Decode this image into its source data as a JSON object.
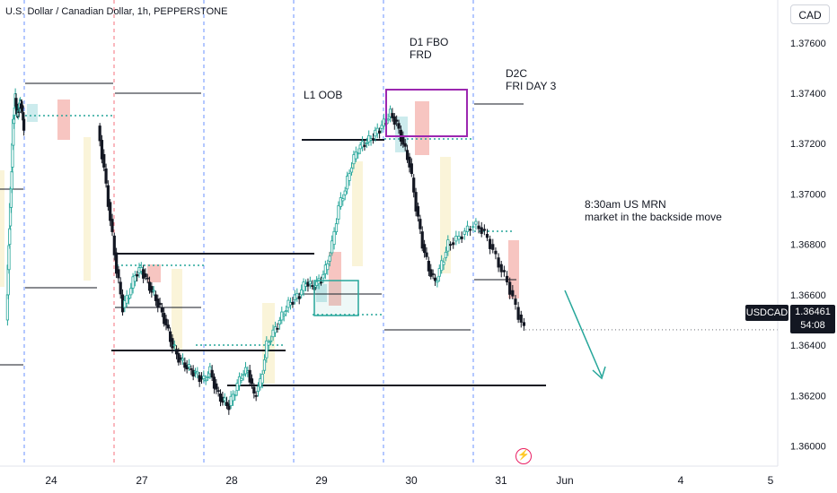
{
  "header": {
    "symbol_title": "U.S. Dollar / Canadian Dollar, 1h, PEPPERSTONE",
    "currency_button": "CAD"
  },
  "price_scale": {
    "ticks": [
      "1.37600",
      "1.37400",
      "1.37200",
      "1.37000",
      "1.36800",
      "1.36600",
      "1.36400",
      "1.36200",
      "1.36000"
    ]
  },
  "time_scale": {
    "ticks": [
      "24",
      "27",
      "28",
      "29",
      "30",
      "31",
      "Jun",
      "4",
      "5"
    ]
  },
  "last_price": {
    "symbol": "USDCAD",
    "price": "1.36461",
    "countdown": "54:08"
  },
  "annotations": {
    "l1": "L1 OOB",
    "d1_line1": "D1 FBO",
    "d1_line2": "FRD",
    "d2_line1": "D2C",
    "d2_line2": "FRI DAY 3",
    "mrn_line1": "8:30am US MRN",
    "mrn_line2": "market in the backside move"
  },
  "colors": {
    "up": "#26a69a",
    "down": "#131722",
    "accent_teal": "#26a69a",
    "box_purple": "#9c27b0",
    "session_line": "#2962ff",
    "boundary_red": "#f23645",
    "last_price_bg": "#131722"
  },
  "icons": {
    "bolt": "lightning-icon",
    "arrow": "down-arrow-drawing"
  },
  "chart_data": {
    "type": "candlestick",
    "title": "U.S. Dollar / Canadian Dollar, 1h, PEPPERSTONE",
    "ylim": [
      1.3592,
      1.3777
    ],
    "x_ticks": [
      "24",
      "27",
      "28",
      "29",
      "30",
      "31",
      "Jun",
      "4",
      "5"
    ],
    "close_path_days": [
      {
        "day": "24",
        "closes": [
          1.368,
          1.3702,
          1.3728,
          1.3738,
          1.3731,
          1.3736,
          1.3735,
          1.3727
        ]
      },
      {
        "day": "27",
        "closes": [
          1.371,
          1.369,
          1.367,
          1.3655,
          1.366,
          1.3668,
          1.367,
          1.3665,
          1.366,
          1.3655,
          1.3648,
          1.364,
          1.3635
        ]
      },
      {
        "day": "28",
        "closes": [
          1.3632,
          1.363,
          1.3628,
          1.3626,
          1.363,
          1.3622,
          1.3618,
          1.3616,
          1.3622,
          1.3628,
          1.363,
          1.362,
          1.3625,
          1.364
        ]
      },
      {
        "day": "29",
        "closes": [
          1.3645,
          1.365,
          1.3655,
          1.3658,
          1.366,
          1.3665,
          1.3663,
          1.3665,
          1.367,
          1.368,
          1.3695,
          1.3702,
          1.3712,
          1.3718
        ]
      },
      {
        "day": "30",
        "closes": [
          1.372,
          1.3722,
          1.3725,
          1.3728,
          1.3732,
          1.3728,
          1.372,
          1.3712,
          1.3695,
          1.368,
          1.367,
          1.3665,
          1.3672,
          1.368
        ]
      },
      {
        "day": "31",
        "closes": [
          1.3682,
          1.3685,
          1.3688,
          1.3686,
          1.368,
          1.3672,
          1.3665,
          1.3655,
          1.3646
        ]
      }
    ]
  }
}
